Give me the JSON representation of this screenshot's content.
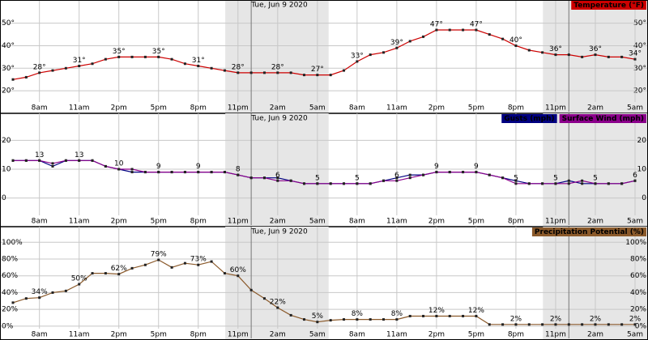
{
  "chart_data": [
    {
      "type": "line",
      "title": "Tue, Jun 9 2020",
      "categories": [
        null,
        null,
        "8am",
        null,
        null,
        "11am",
        null,
        null,
        "2pm",
        null,
        null,
        "5pm",
        null,
        null,
        "8pm",
        null,
        null,
        "11pm",
        null,
        null,
        "2am",
        null,
        null,
        "5am",
        null,
        null,
        "8am",
        null,
        null,
        "11am",
        null,
        null,
        "2pm",
        null,
        null,
        "5pm",
        null,
        null,
        "8pm",
        null,
        null,
        "11pm",
        null,
        null,
        "2am",
        null,
        null,
        "5am"
      ],
      "series": [
        {
          "name": "Temperature (°F)",
          "color": "#cc0000",
          "data_labels": true,
          "values": [
            25,
            26,
            28,
            29,
            30,
            31,
            32,
            34,
            35,
            35,
            35,
            35,
            34,
            32,
            31,
            30,
            29,
            28,
            28,
            28,
            28,
            28,
            27,
            27,
            27,
            29,
            33,
            36,
            37,
            39,
            42,
            44,
            47,
            47,
            47,
            47,
            45,
            43,
            40,
            38,
            37,
            36,
            36,
            35,
            36,
            35,
            35,
            34
          ],
          "value_labels": [
            null,
            null,
            "28°",
            null,
            null,
            "31°",
            null,
            null,
            "35°",
            null,
            null,
            "35°",
            null,
            null,
            "31°",
            null,
            null,
            "28°",
            null,
            null,
            "28°",
            null,
            null,
            "27°",
            null,
            null,
            "33°",
            null,
            null,
            "39°",
            null,
            null,
            "47°",
            null,
            null,
            "47°",
            null,
            null,
            "40°",
            null,
            null,
            "36°",
            null,
            null,
            "36°",
            null,
            null,
            "34°"
          ]
        }
      ],
      "ylim": [
        15,
        56
      ],
      "yticks": [
        {
          "value": 20,
          "label": "20°"
        },
        {
          "value": 30,
          "label": "30°"
        },
        {
          "value": 40,
          "label": "40°"
        },
        {
          "value": 50,
          "label": "50°"
        }
      ],
      "grid": true
    },
    {
      "type": "line",
      "title": "Tue, Jun 9 2020",
      "categories": [
        null,
        null,
        "8am",
        null,
        null,
        "11am",
        null,
        null,
        "2pm",
        null,
        null,
        "5pm",
        null,
        null,
        "8pm",
        null,
        null,
        "11pm",
        null,
        null,
        "2am",
        null,
        null,
        "5am",
        null,
        null,
        "8am",
        null,
        null,
        "11am",
        null,
        null,
        "2pm",
        null,
        null,
        "5pm",
        null,
        null,
        "8pm",
        null,
        null,
        "11pm",
        null,
        null,
        "2am",
        null,
        null,
        "5am"
      ],
      "series": [
        {
          "name": "Gusts (mph)",
          "color": "#000080",
          "values": [
            13,
            13,
            13,
            11,
            13,
            13,
            13,
            11,
            10,
            9,
            9,
            9,
            9,
            9,
            9,
            9,
            9,
            8,
            7,
            7,
            7,
            6,
            5,
            5,
            5,
            5,
            5,
            5,
            6,
            7,
            8,
            8,
            9,
            9,
            9,
            9,
            8,
            7,
            6,
            5,
            5,
            5,
            6,
            5,
            5,
            5,
            5,
            6
          ]
        },
        {
          "name": "Surface Wind (mph)",
          "color": "#8b008b",
          "data_labels": true,
          "values": [
            13,
            13,
            13,
            12,
            13,
            13,
            13,
            11,
            10,
            10,
            9,
            9,
            9,
            9,
            9,
            9,
            9,
            8,
            7,
            7,
            6,
            6,
            5,
            5,
            5,
            5,
            5,
            5,
            6,
            6,
            7,
            8,
            9,
            9,
            9,
            9,
            8,
            7,
            5,
            5,
            5,
            5,
            5,
            6,
            5,
            5,
            5,
            6
          ]
        }
      ],
      "ylim": [
        -6,
        26
      ],
      "yticks": [
        0,
        10,
        20
      ],
      "grid": true
    },
    {
      "type": "line",
      "title": "Tue, Jun 9 2020",
      "categories": [
        null,
        null,
        "8am",
        null,
        null,
        "11am",
        null,
        null,
        "2pm",
        null,
        null,
        "5pm",
        null,
        null,
        "8pm",
        null,
        null,
        "11pm",
        null,
        null,
        "2am",
        null,
        null,
        "5am",
        null,
        null,
        "8am",
        null,
        null,
        "11am",
        null,
        null,
        "2pm",
        null,
        null,
        "5pm",
        null,
        null,
        "8pm",
        null,
        null,
        "11pm",
        null,
        null,
        "2am",
        null,
        null,
        "5am"
      ],
      "series": [
        {
          "name": "Precipitation Potential (%)",
          "color": "#8b5a2b",
          "data_labels": true,
          "values": [
            28,
            33,
            34,
            40,
            42,
            50,
            63,
            63,
            62,
            69,
            73,
            79,
            70,
            75,
            73,
            77,
            63,
            60,
            43,
            33,
            22,
            13,
            8,
            5,
            7,
            8,
            8,
            8,
            8,
            8,
            12,
            12,
            12,
            12,
            12,
            12,
            2,
            2,
            2,
            2,
            2,
            2,
            2,
            2,
            2,
            2,
            2,
            2
          ],
          "value_labels": [
            null,
            null,
            "34%",
            null,
            null,
            "50%",
            null,
            null,
            "62%",
            null,
            null,
            "79%",
            null,
            null,
            "73%",
            null,
            null,
            "60%",
            null,
            null,
            "22%",
            null,
            null,
            "5%",
            null,
            null,
            "8%",
            null,
            null,
            "8%",
            null,
            null,
            "12%",
            null,
            null,
            "12%",
            null,
            null,
            "2%",
            null,
            null,
            "2%",
            null,
            null,
            "2%",
            null,
            null,
            "2%"
          ]
        }
      ],
      "ylim": [
        -3,
        107
      ],
      "yticks": [
        {
          "value": 0,
          "label": "0%"
        },
        {
          "value": 20,
          "label": "20%"
        },
        {
          "value": 40,
          "label": "40%"
        },
        {
          "value": 60,
          "label": "60%"
        },
        {
          "value": 80,
          "label": "80%"
        },
        {
          "value": 100,
          "label": "100%"
        }
      ],
      "grid": true
    }
  ]
}
